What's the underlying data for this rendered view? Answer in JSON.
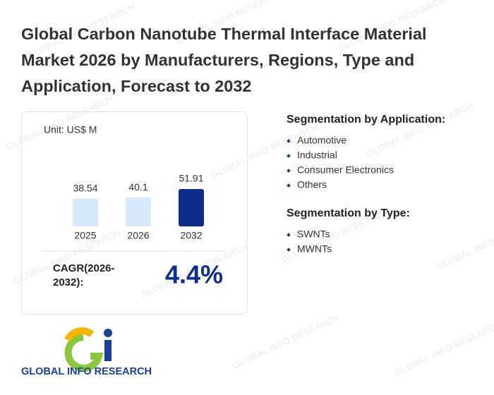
{
  "title": "Global Carbon Nanotube Thermal Interface Material Market 2026 by Manufacturers, Regions, Type and Application, Forecast to 2032",
  "chart_data": {
    "type": "bar",
    "unit": "Unit: US$ M",
    "categories": [
      "2025",
      "2026",
      "2032"
    ],
    "values": [
      38.54,
      40.1,
      51.91
    ],
    "colors": [
      "#d6e8fb",
      "#d6e8fb",
      "#0d2e8c"
    ]
  },
  "cagr": {
    "label": "CAGR(2026-2032):",
    "value": "4.4%"
  },
  "segments": [
    {
      "heading": "Segmentation by Application:",
      "items": [
        "Automotive",
        "Industrial",
        "Consumer Electronics",
        "Others"
      ]
    },
    {
      "heading": "Segmentation by Type:",
      "items": [
        "SWNTs",
        "MWNTs"
      ]
    }
  ],
  "logo": {
    "text": "GLOBAL INFO RESEARCH"
  },
  "watermark": "GLOBAL INFO RESEARCH"
}
